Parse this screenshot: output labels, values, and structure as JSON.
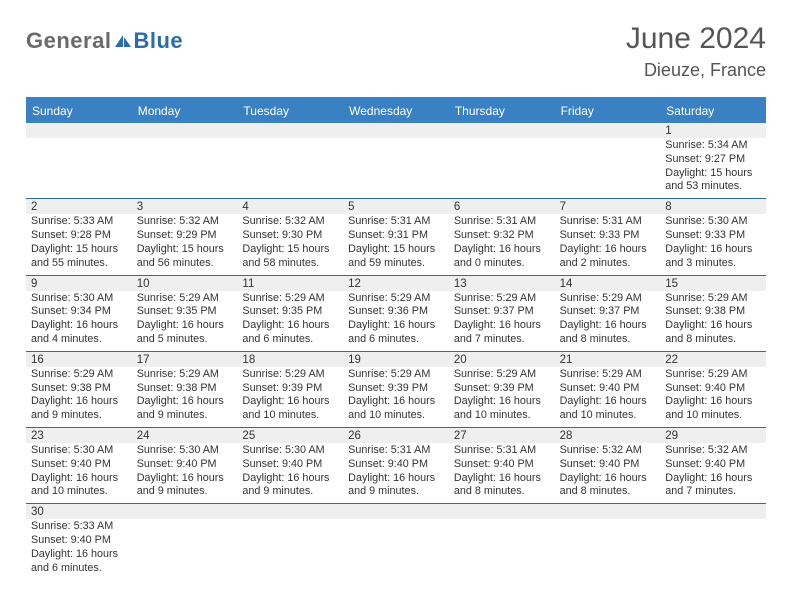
{
  "colors": {
    "header_blue": "#3a81c4",
    "row_alt": "#efefef",
    "line_blue": "#2b6ca8",
    "text": "#333333",
    "logo_gray": "#6a6a6a",
    "logo_blue": "#2b6ca8",
    "white": "#ffffff"
  },
  "logo": {
    "word1": "General",
    "word2": "Blue"
  },
  "title": "June 2024",
  "subtitle": "Dieuze, France",
  "day_names": [
    "Sunday",
    "Monday",
    "Tuesday",
    "Wednesday",
    "Thursday",
    "Friday",
    "Saturday"
  ],
  "weeks": [
    {
      "cells": [
        {
          "blank": true
        },
        {
          "blank": true
        },
        {
          "blank": true
        },
        {
          "blank": true
        },
        {
          "blank": true
        },
        {
          "blank": true
        },
        {
          "day": "1",
          "sunrise": "Sunrise: 5:34 AM",
          "sunset": "Sunset: 9:27 PM",
          "daylight": "Daylight: 15 hours and 53 minutes."
        }
      ]
    },
    {
      "cells": [
        {
          "day": "2",
          "sunrise": "Sunrise: 5:33 AM",
          "sunset": "Sunset: 9:28 PM",
          "daylight": "Daylight: 15 hours and 55 minutes."
        },
        {
          "day": "3",
          "sunrise": "Sunrise: 5:32 AM",
          "sunset": "Sunset: 9:29 PM",
          "daylight": "Daylight: 15 hours and 56 minutes."
        },
        {
          "day": "4",
          "sunrise": "Sunrise: 5:32 AM",
          "sunset": "Sunset: 9:30 PM",
          "daylight": "Daylight: 15 hours and 58 minutes."
        },
        {
          "day": "5",
          "sunrise": "Sunrise: 5:31 AM",
          "sunset": "Sunset: 9:31 PM",
          "daylight": "Daylight: 15 hours and 59 minutes."
        },
        {
          "day": "6",
          "sunrise": "Sunrise: 5:31 AM",
          "sunset": "Sunset: 9:32 PM",
          "daylight": "Daylight: 16 hours and 0 minutes."
        },
        {
          "day": "7",
          "sunrise": "Sunrise: 5:31 AM",
          "sunset": "Sunset: 9:33 PM",
          "daylight": "Daylight: 16 hours and 2 minutes."
        },
        {
          "day": "8",
          "sunrise": "Sunrise: 5:30 AM",
          "sunset": "Sunset: 9:33 PM",
          "daylight": "Daylight: 16 hours and 3 minutes."
        }
      ]
    },
    {
      "cells": [
        {
          "day": "9",
          "sunrise": "Sunrise: 5:30 AM",
          "sunset": "Sunset: 9:34 PM",
          "daylight": "Daylight: 16 hours and 4 minutes."
        },
        {
          "day": "10",
          "sunrise": "Sunrise: 5:29 AM",
          "sunset": "Sunset: 9:35 PM",
          "daylight": "Daylight: 16 hours and 5 minutes."
        },
        {
          "day": "11",
          "sunrise": "Sunrise: 5:29 AM",
          "sunset": "Sunset: 9:35 PM",
          "daylight": "Daylight: 16 hours and 6 minutes."
        },
        {
          "day": "12",
          "sunrise": "Sunrise: 5:29 AM",
          "sunset": "Sunset: 9:36 PM",
          "daylight": "Daylight: 16 hours and 6 minutes."
        },
        {
          "day": "13",
          "sunrise": "Sunrise: 5:29 AM",
          "sunset": "Sunset: 9:37 PM",
          "daylight": "Daylight: 16 hours and 7 minutes."
        },
        {
          "day": "14",
          "sunrise": "Sunrise: 5:29 AM",
          "sunset": "Sunset: 9:37 PM",
          "daylight": "Daylight: 16 hours and 8 minutes."
        },
        {
          "day": "15",
          "sunrise": "Sunrise: 5:29 AM",
          "sunset": "Sunset: 9:38 PM",
          "daylight": "Daylight: 16 hours and 8 minutes."
        }
      ]
    },
    {
      "cells": [
        {
          "day": "16",
          "sunrise": "Sunrise: 5:29 AM",
          "sunset": "Sunset: 9:38 PM",
          "daylight": "Daylight: 16 hours and 9 minutes."
        },
        {
          "day": "17",
          "sunrise": "Sunrise: 5:29 AM",
          "sunset": "Sunset: 9:38 PM",
          "daylight": "Daylight: 16 hours and 9 minutes."
        },
        {
          "day": "18",
          "sunrise": "Sunrise: 5:29 AM",
          "sunset": "Sunset: 9:39 PM",
          "daylight": "Daylight: 16 hours and 10 minutes."
        },
        {
          "day": "19",
          "sunrise": "Sunrise: 5:29 AM",
          "sunset": "Sunset: 9:39 PM",
          "daylight": "Daylight: 16 hours and 10 minutes."
        },
        {
          "day": "20",
          "sunrise": "Sunrise: 5:29 AM",
          "sunset": "Sunset: 9:39 PM",
          "daylight": "Daylight: 16 hours and 10 minutes."
        },
        {
          "day": "21",
          "sunrise": "Sunrise: 5:29 AM",
          "sunset": "Sunset: 9:40 PM",
          "daylight": "Daylight: 16 hours and 10 minutes."
        },
        {
          "day": "22",
          "sunrise": "Sunrise: 5:29 AM",
          "sunset": "Sunset: 9:40 PM",
          "daylight": "Daylight: 16 hours and 10 minutes."
        }
      ]
    },
    {
      "cells": [
        {
          "day": "23",
          "sunrise": "Sunrise: 5:30 AM",
          "sunset": "Sunset: 9:40 PM",
          "daylight": "Daylight: 16 hours and 10 minutes."
        },
        {
          "day": "24",
          "sunrise": "Sunrise: 5:30 AM",
          "sunset": "Sunset: 9:40 PM",
          "daylight": "Daylight: 16 hours and 9 minutes."
        },
        {
          "day": "25",
          "sunrise": "Sunrise: 5:30 AM",
          "sunset": "Sunset: 9:40 PM",
          "daylight": "Daylight: 16 hours and 9 minutes."
        },
        {
          "day": "26",
          "sunrise": "Sunrise: 5:31 AM",
          "sunset": "Sunset: 9:40 PM",
          "daylight": "Daylight: 16 hours and 9 minutes."
        },
        {
          "day": "27",
          "sunrise": "Sunrise: 5:31 AM",
          "sunset": "Sunset: 9:40 PM",
          "daylight": "Daylight: 16 hours and 8 minutes."
        },
        {
          "day": "28",
          "sunrise": "Sunrise: 5:32 AM",
          "sunset": "Sunset: 9:40 PM",
          "daylight": "Daylight: 16 hours and 8 minutes."
        },
        {
          "day": "29",
          "sunrise": "Sunrise: 5:32 AM",
          "sunset": "Sunset: 9:40 PM",
          "daylight": "Daylight: 16 hours and 7 minutes."
        }
      ]
    },
    {
      "cells": [
        {
          "day": "30",
          "sunrise": "Sunrise: 5:33 AM",
          "sunset": "Sunset: 9:40 PM",
          "daylight": "Daylight: 16 hours and 6 minutes."
        },
        {
          "blank": true
        },
        {
          "blank": true
        },
        {
          "blank": true
        },
        {
          "blank": true
        },
        {
          "blank": true
        },
        {
          "blank": true
        }
      ],
      "last": true
    }
  ]
}
